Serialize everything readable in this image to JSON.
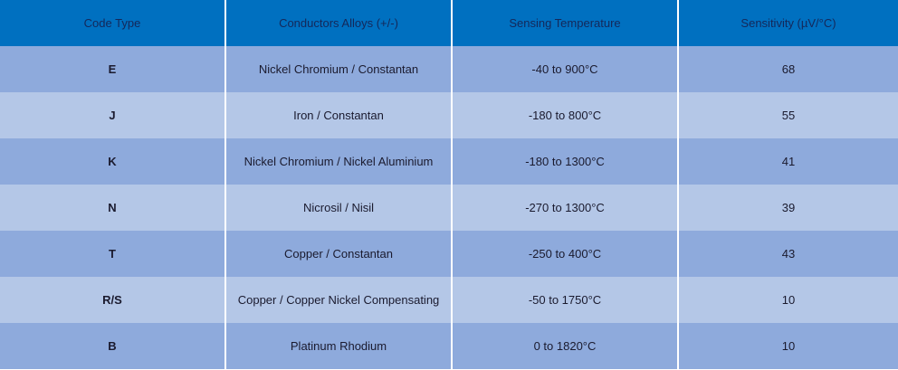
{
  "table": {
    "headers": [
      "Code Type",
      "Conductors Alloys (+/-)",
      "Sensing Temperature",
      "Sensitivity (µV/°C)"
    ],
    "rows": [
      [
        "E",
        "Nickel Chromium / Constantan",
        "-40 to 900°C",
        "68"
      ],
      [
        "J",
        "Iron / Constantan",
        "-180 to 800°C",
        "55"
      ],
      [
        "K",
        "Nickel Chromium / Nickel Aluminium",
        "-180 to 1300°C",
        "41"
      ],
      [
        "N",
        "Nicrosil / Nisil",
        "-270 to 1300°C",
        "39"
      ],
      [
        "T",
        "Copper / Constantan",
        "-250 to 400°C",
        "43"
      ],
      [
        "R/S",
        "Copper / Copper Nickel Compensating",
        "-50 to 1750°C",
        "10"
      ],
      [
        "B",
        "Platinum Rhodium",
        "0 to 1820°C",
        "10"
      ]
    ]
  },
  "colors": {
    "header": "#0070c0",
    "row_dark": "#8eaadc",
    "row_light": "#b4c7e7"
  }
}
